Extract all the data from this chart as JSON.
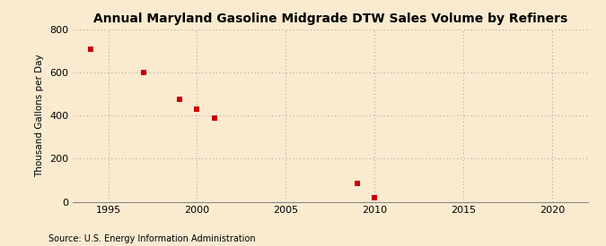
{
  "title": "Annual Maryland Gasoline Midgrade DTW Sales Volume by Refiners",
  "ylabel": "Thousand Gallons per Day",
  "source": "Source: U.S. Energy Information Administration",
  "x_data": [
    1994,
    1997,
    1999,
    2000,
    2001,
    2009,
    2010
  ],
  "y_data": [
    710,
    600,
    475,
    430,
    390,
    85,
    20
  ],
  "xlim": [
    1993,
    2022
  ],
  "ylim": [
    0,
    800
  ],
  "xticks": [
    1995,
    2000,
    2005,
    2010,
    2015,
    2020
  ],
  "yticks": [
    0,
    200,
    400,
    600,
    800
  ],
  "marker_color": "#cc0000",
  "marker": "s",
  "marker_size": 4,
  "background_color": "#faebd0",
  "grid_color": "#999999",
  "title_fontsize": 10,
  "label_fontsize": 7.5,
  "tick_fontsize": 8,
  "source_fontsize": 7
}
